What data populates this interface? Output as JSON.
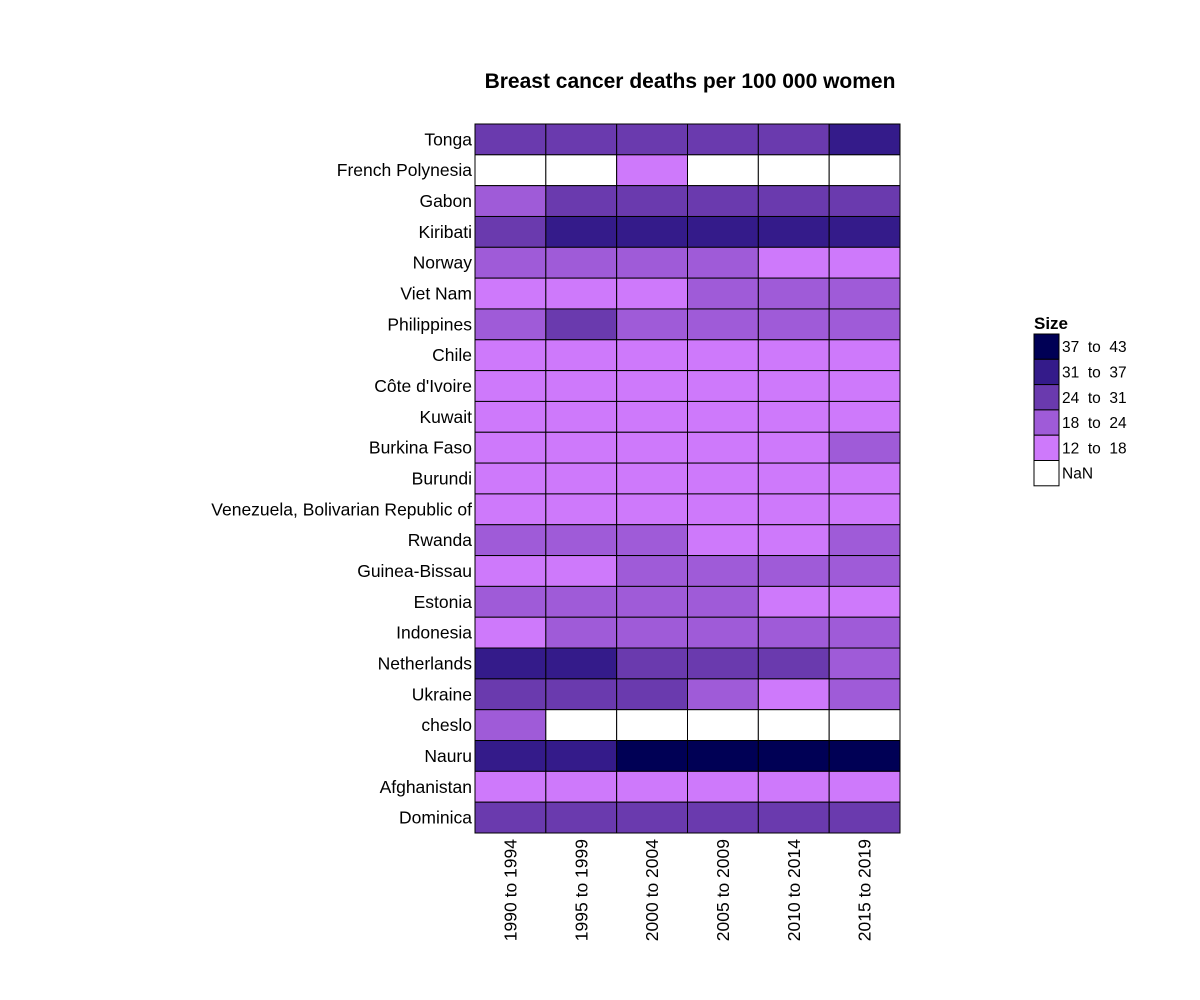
{
  "chart_data": {
    "type": "heatmap",
    "title": "Breast cancer deaths per 100 000 women",
    "columns": [
      "1990 to 1994",
      "1995 to 1999",
      "2000 to 2004",
      "2005 to 2009",
      "2010 to 2014",
      "2015 to 2019"
    ],
    "rows": [
      "Tonga",
      "French Polynesia",
      "Gabon",
      "Kiribati",
      "Norway",
      "Viet Nam",
      "Philippines",
      "Chile",
      "Côte d'Ivoire",
      "Kuwait",
      "Burkina Faso",
      "Burundi",
      "Venezuela, Bolivarian Republic of",
      "Rwanda",
      "Guinea-Bissau",
      "Estonia",
      "Indonesia",
      "Netherlands",
      "Ukraine",
      "cheslo",
      "Nauru",
      "Afghanistan",
      "Dominica"
    ],
    "bins": [
      [
        2,
        2,
        2,
        2,
        2,
        3
      ],
      [
        null,
        null,
        0,
        null,
        null,
        null
      ],
      [
        1,
        2,
        2,
        2,
        2,
        2
      ],
      [
        2,
        3,
        3,
        3,
        3,
        3
      ],
      [
        1,
        1,
        1,
        1,
        0,
        0
      ],
      [
        0,
        0,
        0,
        1,
        1,
        1
      ],
      [
        1,
        2,
        1,
        1,
        1,
        1
      ],
      [
        0,
        0,
        0,
        0,
        0,
        0
      ],
      [
        0,
        0,
        0,
        0,
        0,
        0
      ],
      [
        0,
        0,
        0,
        0,
        0,
        0
      ],
      [
        0,
        0,
        0,
        0,
        0,
        1
      ],
      [
        0,
        0,
        0,
        0,
        0,
        0
      ],
      [
        0,
        0,
        0,
        0,
        0,
        0
      ],
      [
        1,
        1,
        1,
        0,
        0,
        1
      ],
      [
        0,
        0,
        1,
        1,
        1,
        1
      ],
      [
        1,
        1,
        1,
        1,
        0,
        0
      ],
      [
        0,
        1,
        1,
        1,
        1,
        1
      ],
      [
        3,
        3,
        2,
        2,
        2,
        1
      ],
      [
        2,
        2,
        2,
        1,
        0,
        1
      ],
      [
        1,
        null,
        null,
        null,
        null,
        null
      ],
      [
        3,
        3,
        4,
        4,
        4,
        4
      ],
      [
        0,
        0,
        0,
        0,
        0,
        0
      ],
      [
        2,
        2,
        2,
        2,
        2,
        2
      ]
    ],
    "legend": {
      "title": "Size",
      "placement": "right",
      "items": [
        {
          "label": "37  to  43",
          "color": "#000055"
        },
        {
          "label": "31  to  37",
          "color": "#341b8a"
        },
        {
          "label": "24  to  31",
          "color": "#6a3aae"
        },
        {
          "label": "18  to  24",
          "color": "#9f5bd8"
        },
        {
          "label": "12  to  18",
          "color": "#ce79fb"
        },
        {
          "label": "NaN",
          "color": "#ffffff"
        }
      ]
    },
    "bin_colors": [
      "#ce79fb",
      "#9f5bd8",
      "#6a3aae",
      "#341b8a",
      "#000055"
    ],
    "nan_color": "#ffffff"
  }
}
